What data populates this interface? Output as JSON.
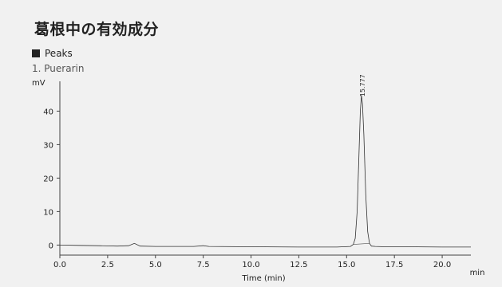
{
  "title": "葛根中の有効成分",
  "legend": {
    "header": "Peaks",
    "items": [
      "1. Puerarin"
    ]
  },
  "chart_data": {
    "type": "line",
    "title": "葛根中の有効成分",
    "xlabel": "Time (min)",
    "x_unit": "min",
    "ylabel": "mV",
    "xlim": [
      0,
      21.5
    ],
    "ylim": [
      -3,
      47
    ],
    "x_ticks": [
      "0.0",
      "2.5",
      "5.0",
      "7.5",
      "10.0",
      "12.5",
      "15.0",
      "17.5",
      "20.0"
    ],
    "y_ticks": [
      "0",
      "10",
      "20",
      "30",
      "40"
    ],
    "grid": false,
    "series": [
      {
        "x": [
          0.0,
          1.0,
          2.0,
          3.0,
          3.6,
          3.9,
          4.2,
          5.0,
          7.0,
          7.5,
          7.8,
          10.0,
          12.5,
          14.5,
          15.2,
          15.35,
          15.45,
          15.55,
          15.65,
          15.72,
          15.777,
          15.83,
          15.9,
          16.0,
          16.1,
          16.2,
          16.3,
          16.5,
          17.0,
          18.0,
          20.0,
          21.5
        ],
        "y": [
          0.0,
          -0.1,
          -0.2,
          -0.3,
          -0.2,
          0.5,
          -0.3,
          -0.4,
          -0.4,
          -0.2,
          -0.4,
          -0.5,
          -0.6,
          -0.6,
          -0.4,
          0.2,
          2.0,
          10.0,
          28.0,
          40.0,
          44.8,
          42.0,
          33.0,
          15.0,
          4.0,
          0.5,
          -0.3,
          -0.4,
          -0.5,
          -0.5,
          -0.6,
          -0.6
        ]
      }
    ],
    "annotations": [
      {
        "label": "15.777",
        "x": 15.777,
        "y": 44.8
      }
    ]
  }
}
